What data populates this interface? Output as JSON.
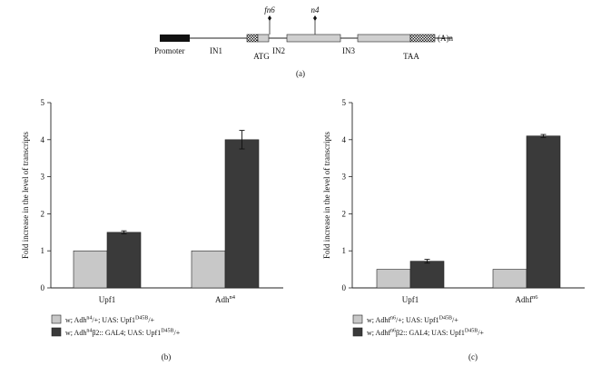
{
  "diagram": {
    "labels": {
      "promoter": "Promoter",
      "in1": "IN1",
      "atg": "ATG",
      "in2": "IN2",
      "in3": "IN3",
      "taa": "TAA",
      "polya": "(A)n",
      "fn6": "fn6",
      "n4": "n4"
    },
    "caption": "(a)"
  },
  "chart_data": [
    {
      "type": "bar",
      "panel": "(b)",
      "categories": [
        "Upf1",
        "Adh^n4"
      ],
      "category_labels": [
        {
          "base": "Upf1",
          "sup": ""
        },
        {
          "base": "Adh",
          "sup": "n4"
        }
      ],
      "ylabel": "Fold increase in the level of transcripts",
      "ylim": [
        0,
        5
      ],
      "yticks": [
        0,
        1,
        2,
        3,
        4,
        5
      ],
      "series": [
        {
          "name": "w; Adh^n4/+; UAS: Upf1^D45B/+",
          "color": "#c8c8c8",
          "values": [
            1.0,
            1.0
          ],
          "errors": [
            0,
            0
          ]
        },
        {
          "name": "w; Adh^n4 β2:: GAL4; UAS: Upf1^D45B/+",
          "color": "#3a3a3a",
          "values": [
            1.5,
            4.0
          ],
          "errors": [
            0.04,
            0.25
          ]
        }
      ],
      "legend": [
        {
          "parts": [
            {
              "t": "w; Adh",
              "s": ""
            },
            {
              "t": "n4",
              "s": "sup"
            },
            {
              "t": "/+; UAS: Upf1",
              "s": ""
            },
            {
              "t": "D45B",
              "s": "sup"
            },
            {
              "t": "/+",
              "s": ""
            }
          ]
        },
        {
          "parts": [
            {
              "t": "w; Adh",
              "s": ""
            },
            {
              "t": "n4",
              "s": "sup"
            },
            {
              "t": "β2:: GAL4; UAS: Upf1",
              "s": "ital1"
            },
            {
              "t": "D45B",
              "s": "sup"
            },
            {
              "t": "/+",
              "s": ""
            }
          ]
        }
      ],
      "legend_placement": "bottom-left",
      "grid": false
    },
    {
      "type": "bar",
      "panel": "(c)",
      "categories": [
        "Upf1",
        "Adhf^n6"
      ],
      "category_labels": [
        {
          "base": "Upf1",
          "sup": ""
        },
        {
          "base": "Adhf",
          "sup": "n6"
        }
      ],
      "ylabel": "Fold increase in the level of transcripts",
      "ylim": [
        0,
        5
      ],
      "yticks": [
        0,
        1,
        2,
        3,
        4,
        5
      ],
      "series": [
        {
          "name": "w; Adhf^n6/+; UAS: Upf1^D45B/+",
          "color": "#c8c8c8",
          "values": [
            0.5,
            0.5
          ],
          "errors": [
            0,
            0
          ]
        },
        {
          "name": "w; Adhf^n6 β2:: GAL4; UAS: Upf1^D45B/+",
          "color": "#3a3a3a",
          "values": [
            0.72,
            4.1
          ],
          "errors": [
            0.05,
            0.04
          ]
        }
      ],
      "legend": [
        {
          "parts": [
            {
              "t": "w; Adhf",
              "s": ""
            },
            {
              "t": "n6",
              "s": "sup"
            },
            {
              "t": "/+; UAS: Upf1",
              "s": ""
            },
            {
              "t": "D45B",
              "s": "sup"
            },
            {
              "t": "/+",
              "s": ""
            }
          ]
        },
        {
          "parts": [
            {
              "t": "w; Adhf",
              "s": ""
            },
            {
              "t": "n6",
              "s": "sup"
            },
            {
              "t": "β2:: GAL4; UAS: Upf1",
              "s": "ital1"
            },
            {
              "t": "D45B",
              "s": "sup"
            },
            {
              "t": "/+",
              "s": ""
            }
          ]
        }
      ],
      "legend_placement": "bottom-left",
      "grid": false
    }
  ]
}
